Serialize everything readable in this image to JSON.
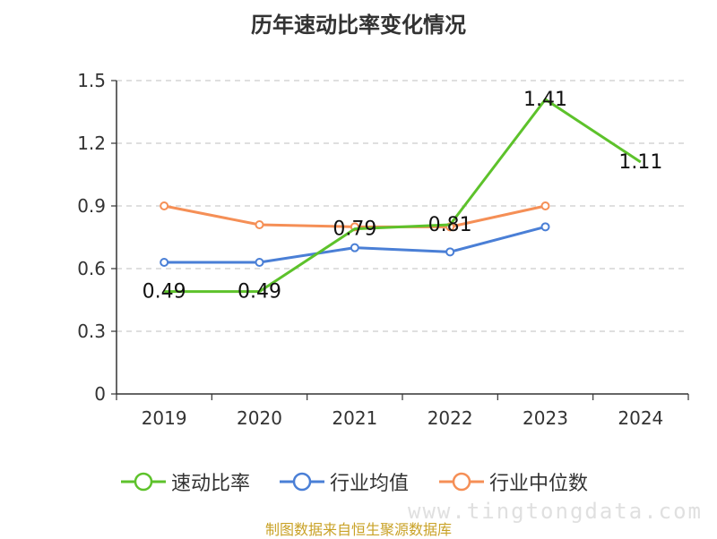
{
  "chart_data": {
    "type": "line",
    "title": "历年速动比率变化情况",
    "categories": [
      "2019",
      "2020",
      "2021",
      "2022",
      "2023",
      "2024"
    ],
    "ylim": [
      0,
      1.5
    ],
    "yticks": [
      0,
      0.3,
      0.6,
      0.9,
      1.2,
      1.5
    ],
    "ytick_labels": [
      "0",
      "0.3",
      "0.6",
      "0.9",
      "1.2",
      "1.5"
    ],
    "grid": true,
    "legend_position": "bottom",
    "series": [
      {
        "name": "速动比率",
        "color": "#5dc22b",
        "values": [
          0.49,
          0.49,
          0.79,
          0.81,
          1.41,
          1.11
        ],
        "labels": [
          "0.49",
          "0.49",
          "0.79",
          "0.81",
          "1.41",
          "1.11"
        ]
      },
      {
        "name": "行业均值",
        "color": "#4a7fd6",
        "values": [
          0.63,
          0.63,
          0.7,
          0.68,
          0.8,
          null
        ]
      },
      {
        "name": "行业中位数",
        "color": "#f58f56",
        "values": [
          0.9,
          0.81,
          0.8,
          0.8,
          0.9,
          null
        ]
      }
    ]
  },
  "source_text": "制图数据来自恒生聚源数据库",
  "watermark_text": "www.tingtongdata.com"
}
